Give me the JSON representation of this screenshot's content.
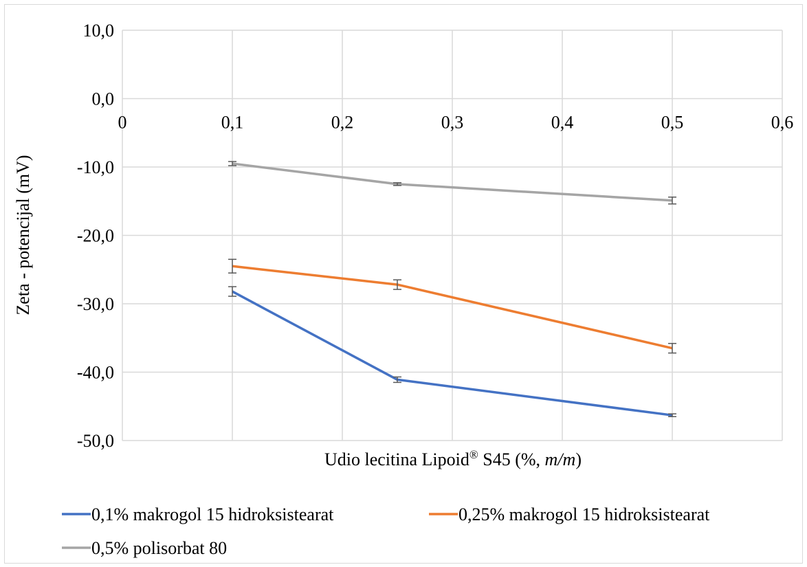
{
  "chart_data": {
    "type": "line",
    "title": "",
    "xlabel": {
      "prefix": "Udio lecitina Lipoid",
      "sup": "®",
      "middle": " S45 (%, ",
      "italic": "m/m",
      "suffix": ")"
    },
    "ylabel": "Zeta - potencijal (mV)",
    "xlim": [
      0,
      0.6
    ],
    "ylim": [
      -50,
      10
    ],
    "x_ticks": [
      0,
      0.1,
      0.2,
      0.3,
      0.4,
      0.5,
      0.6
    ],
    "x_tick_labels": [
      "0",
      "0,1",
      "0,2",
      "0,3",
      "0,4",
      "0,5",
      "0,6"
    ],
    "y_ticks": [
      10,
      0,
      -10,
      -20,
      -30,
      -40,
      -50
    ],
    "y_tick_labels": [
      "10,0",
      "0,0",
      "-10,0",
      "-20,0",
      "-30,0",
      "-40,0",
      "-50,0"
    ],
    "grid": true,
    "legend_position": "bottom",
    "series": [
      {
        "name": "0,1% makrogol 15 hidroksistearat",
        "color": "#4472c4",
        "x": [
          0.1,
          0.25,
          0.5
        ],
        "y": [
          -28.2,
          -41.1,
          -46.3
        ],
        "err": [
          0.7,
          0.4,
          0.2
        ]
      },
      {
        "name": "0,25% makrogol 15 hidroksistearat",
        "color": "#ed7d31",
        "x": [
          0.1,
          0.25,
          0.5
        ],
        "y": [
          -24.5,
          -27.2,
          -36.5
        ],
        "err": [
          1.0,
          0.7,
          0.7
        ]
      },
      {
        "name": "0,5% polisorbat 80",
        "color": "#a5a5a5",
        "x": [
          0.1,
          0.25,
          0.5
        ],
        "y": [
          -9.5,
          -12.5,
          -14.9
        ],
        "err": [
          0.3,
          0.2,
          0.5
        ]
      }
    ]
  }
}
